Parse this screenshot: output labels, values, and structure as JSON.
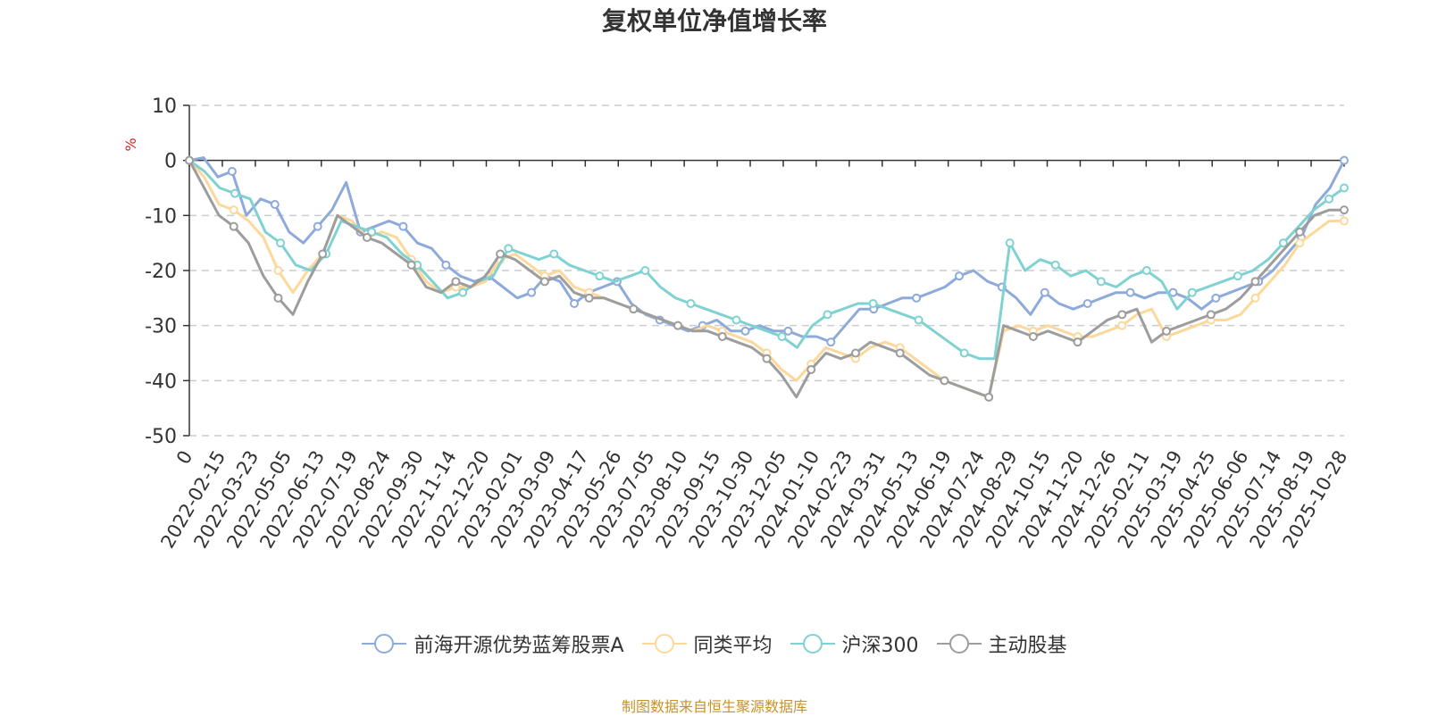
{
  "chart_data": {
    "type": "line",
    "title": "复权单位净值增长率",
    "ylabel": "%",
    "ylim": [
      -50,
      10
    ],
    "yticks": [
      10,
      0,
      -10,
      -20,
      -30,
      -40,
      -50
    ],
    "x_tick_labels": [
      "0",
      "2022-02-15",
      "2022-03-23",
      "2022-05-05",
      "2022-06-13",
      "2022-07-19",
      "2022-08-24",
      "2022-09-30",
      "2022-11-14",
      "2022-12-20",
      "2023-02-01",
      "2023-03-09",
      "2023-04-17",
      "2023-05-26",
      "2023-07-05",
      "2023-08-10",
      "2023-09-15",
      "2023-10-30",
      "2023-12-05",
      "2024-01-10",
      "2024-02-23",
      "2024-03-31",
      "2024-05-13",
      "2024-06-19",
      "2024-07-24",
      "2024-08-29",
      "2024-10-15",
      "2024-11-20",
      "2024-12-26",
      "2025-02-11",
      "2025-03-19",
      "2025-04-25",
      "2025-06-06",
      "2025-07-14",
      "2025-08-19",
      "2025-10-28"
    ],
    "series": [
      {
        "name": "前海开源优势蓝筹股票A",
        "color": "#8eaadb",
        "values": [
          0,
          0.5,
          -3,
          -2,
          -10,
          -7,
          -8,
          -13,
          -15,
          -12,
          -9,
          -4,
          -13,
          -12,
          -11,
          -12,
          -15,
          -16,
          -19,
          -21,
          -22,
          -21,
          -23,
          -25,
          -24,
          -21,
          -22,
          -26,
          -24,
          -23,
          -22,
          -26,
          -28,
          -29,
          -30,
          -31,
          -30,
          -29,
          -31,
          -31,
          -30,
          -31,
          -31,
          -32,
          -32,
          -33,
          -30,
          -27,
          -27,
          -26,
          -25,
          -25,
          -24,
          -23,
          -21,
          -20,
          -22,
          -23,
          -25,
          -28,
          -24,
          -26,
          -27,
          -26,
          -25,
          -24,
          -24,
          -25,
          -24,
          -24,
          -25,
          -27,
          -25,
          -24,
          -23,
          -22,
          -20,
          -17,
          -14,
          -8,
          -5,
          0
        ]
      },
      {
        "name": "同类平均",
        "color": "#fdd89b",
        "values": [
          0,
          -3,
          -8,
          -9,
          -11,
          -14,
          -20,
          -24,
          -20,
          -17,
          -10,
          -11,
          -14,
          -13,
          -14,
          -18,
          -22,
          -24,
          -23,
          -23,
          -22,
          -18,
          -17,
          -19,
          -21,
          -20,
          -23,
          -24,
          -25,
          -26,
          -27,
          -28,
          -29,
          -30,
          -31,
          -30,
          -31,
          -32,
          -33,
          -35,
          -38,
          -40,
          -37,
          -34,
          -35,
          -36,
          -34,
          -33,
          -34,
          -36,
          -38,
          -40,
          -41,
          -42,
          -43,
          -31,
          -30,
          -31,
          -30,
          -31,
          -32,
          -32,
          -31,
          -30,
          -28,
          -27,
          -32,
          -31,
          -30,
          -29,
          -29,
          -28,
          -25,
          -22,
          -19,
          -15,
          -13,
          -11,
          -11
        ]
      },
      {
        "name": "沪深300",
        "color": "#80d2d2",
        "values": [
          0,
          -2,
          -5,
          -6,
          -7,
          -13,
          -15,
          -19,
          -20,
          -17,
          -11,
          -12,
          -13,
          -14,
          -17,
          -19,
          -22,
          -25,
          -24,
          -22,
          -21,
          -16,
          -17,
          -18,
          -17,
          -19,
          -20,
          -21,
          -22,
          -21,
          -20,
          -23,
          -25,
          -26,
          -27,
          -28,
          -29,
          -30,
          -31,
          -32,
          -34,
          -30,
          -28,
          -27,
          -26,
          -26,
          -27,
          -28,
          -29,
          -31,
          -33,
          -35,
          -36,
          -36,
          -15,
          -20,
          -18,
          -19,
          -21,
          -20,
          -22,
          -23,
          -21,
          -20,
          -22,
          -27,
          -24,
          -23,
          -22,
          -21,
          -20,
          -18,
          -15,
          -12,
          -9,
          -7,
          -5
        ]
      },
      {
        "name": "主动股基",
        "color": "#9d9d9d",
        "values": [
          0,
          -5,
          -10,
          -12,
          -15,
          -21,
          -25,
          -28,
          -22,
          -17,
          -10,
          -12,
          -14,
          -15,
          -17,
          -19,
          -23,
          -24,
          -22,
          -23,
          -21,
          -17,
          -18,
          -20,
          -22,
          -21,
          -24,
          -25,
          -25,
          -26,
          -27,
          -28,
          -29,
          -30,
          -31,
          -31,
          -32,
          -33,
          -34,
          -36,
          -39,
          -43,
          -38,
          -35,
          -36,
          -35,
          -33,
          -34,
          -35,
          -37,
          -39,
          -40,
          -41,
          -42,
          -43,
          -30,
          -31,
          -32,
          -31,
          -32,
          -33,
          -31,
          -29,
          -28,
          -27,
          -33,
          -31,
          -30,
          -29,
          -28,
          -27,
          -25,
          -22,
          -19,
          -16,
          -13,
          -10,
          -9,
          -9
        ]
      }
    ],
    "legend_position": "bottom"
  },
  "source_note": "制图数据来自恒生聚源数据库"
}
